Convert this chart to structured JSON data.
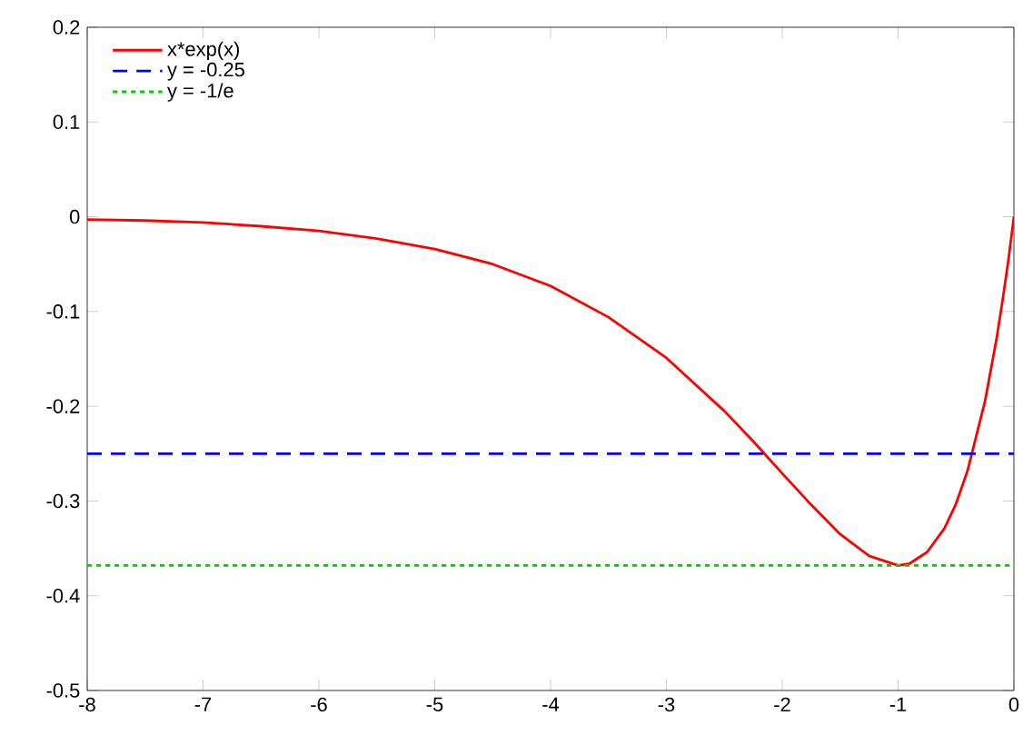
{
  "chart_data": {
    "type": "line",
    "xlim": [
      -8,
      0
    ],
    "ylim": [
      -0.5,
      0.2
    ],
    "xticks": [
      -8,
      -7,
      -6,
      -5,
      -4,
      -3,
      -2,
      -1,
      0
    ],
    "yticks": [
      -0.5,
      -0.4,
      -0.3,
      -0.2,
      -0.1,
      0,
      0.1,
      0.2
    ],
    "legend": "top left",
    "grid": false,
    "series": [
      {
        "name": "x*exp(x)",
        "color": "#ff0000",
        "line_style": "solid",
        "x": [
          -8,
          -7.5,
          -7,
          -6.5,
          -6,
          -5.5,
          -5,
          -4.5,
          -4,
          -3.5,
          -3,
          -2.5,
          -2.25,
          -2,
          -1.75,
          -1.5,
          -1.25,
          -1,
          -0.9,
          -0.75,
          -0.6,
          -0.5,
          -0.4,
          -0.25,
          -0.15,
          -0.1,
          -0.05,
          0
        ],
        "values": [
          -0.003,
          -0.004,
          -0.006,
          -0.01,
          -0.015,
          -0.023,
          -0.034,
          -0.05,
          -0.073,
          -0.106,
          -0.149,
          -0.205,
          -0.237,
          -0.271,
          -0.304,
          -0.335,
          -0.358,
          -0.368,
          -0.366,
          -0.354,
          -0.329,
          -0.303,
          -0.268,
          -0.195,
          -0.129,
          -0.09,
          -0.048,
          0
        ]
      },
      {
        "name": "y = -0.25",
        "color": "#0000ff",
        "line_style": "dashed",
        "x": [
          -8,
          0
        ],
        "values": [
          -0.25,
          -0.25
        ]
      },
      {
        "name": "y = -1/e",
        "color": "#00cc00",
        "line_style": "dotted",
        "x": [
          -8,
          0
        ],
        "values": [
          -0.368,
          -0.368
        ]
      }
    ]
  }
}
